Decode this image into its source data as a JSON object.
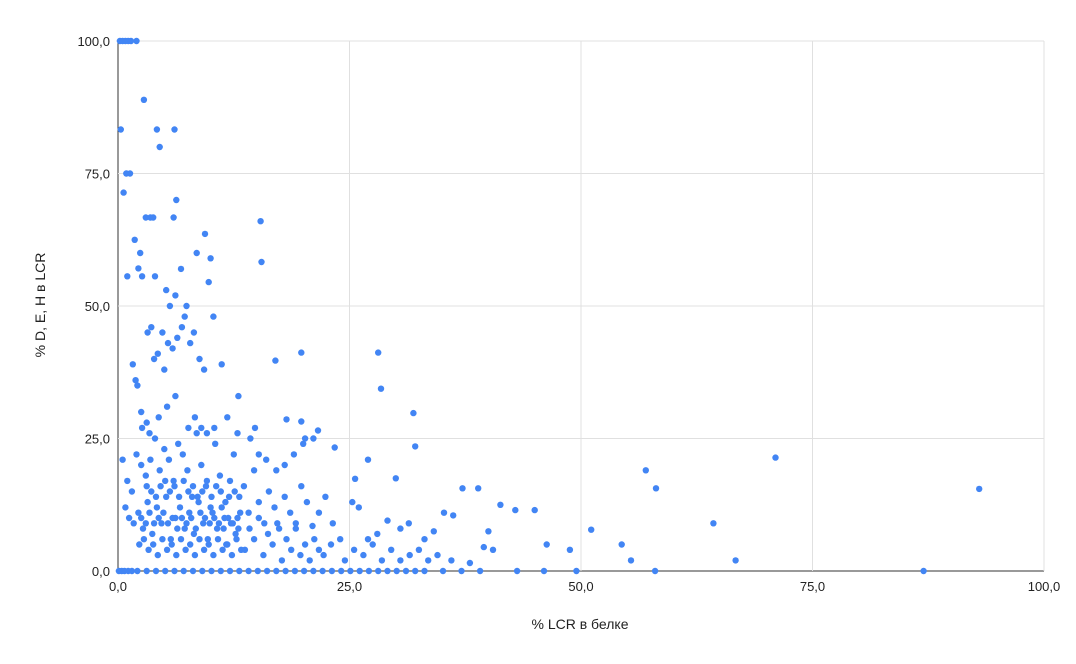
{
  "chart_data": {
    "type": "scatter",
    "title": "",
    "xlabel": "% LCR в белке",
    "ylabel": "% D, E, H в LCR",
    "xlim": [
      0,
      100
    ],
    "ylim": [
      0,
      100
    ],
    "x_ticks": [
      "0,0",
      "25,0",
      "50,0",
      "75,0",
      "100,0"
    ],
    "y_ticks": [
      "0,0",
      "25,0",
      "50,0",
      "75,0",
      "100,0"
    ],
    "grid": true,
    "legend": "none",
    "point_color": "#4285F4",
    "series": [
      {
        "points": [
          [
            0.2,
            100
          ],
          [
            0.5,
            100
          ],
          [
            0.8,
            100
          ],
          [
            1.1,
            100
          ],
          [
            1.4,
            100
          ],
          [
            2.0,
            100
          ],
          [
            0.3,
            83.3
          ],
          [
            0.6,
            71.4
          ],
          [
            0.9,
            75
          ],
          [
            1.3,
            75
          ],
          [
            1.0,
            55.6
          ],
          [
            1.8,
            62.5
          ],
          [
            2.2,
            57.1
          ],
          [
            2.6,
            55.6
          ],
          [
            2.4,
            60
          ],
          [
            2.8,
            88.9
          ],
          [
            3.0,
            66.7
          ],
          [
            3.5,
            66.7
          ],
          [
            3.8,
            66.7
          ],
          [
            4.0,
            55.6
          ],
          [
            4.2,
            83.3
          ],
          [
            4.5,
            80
          ],
          [
            6.1,
            83.3
          ],
          [
            6.3,
            70
          ],
          [
            6.0,
            66.7
          ],
          [
            5.2,
            53
          ],
          [
            5.6,
            50
          ],
          [
            6.2,
            52
          ],
          [
            6.8,
            57
          ],
          [
            7.4,
            50
          ],
          [
            8.5,
            60
          ],
          [
            9.4,
            63.6
          ],
          [
            10.0,
            59
          ],
          [
            9.8,
            54.5
          ],
          [
            10.3,
            48
          ],
          [
            15.4,
            66
          ],
          [
            15.5,
            58.3
          ],
          [
            17.0,
            39.7
          ],
          [
            19.8,
            41.2
          ],
          [
            28.1,
            41.2
          ],
          [
            28.4,
            34.4
          ],
          [
            31.9,
            29.8
          ],
          [
            32.1,
            23.5
          ],
          [
            3.2,
            45
          ],
          [
            3.6,
            46
          ],
          [
            3.9,
            40
          ],
          [
            4.3,
            41
          ],
          [
            4.8,
            45
          ],
          [
            5.0,
            38
          ],
          [
            5.4,
            43
          ],
          [
            5.9,
            42
          ],
          [
            6.4,
            44
          ],
          [
            6.9,
            46
          ],
          [
            7.2,
            48
          ],
          [
            7.8,
            43
          ],
          [
            8.2,
            45
          ],
          [
            8.8,
            40
          ],
          [
            9.3,
            38
          ],
          [
            11.2,
            39
          ],
          [
            13.0,
            33
          ],
          [
            1.6,
            39
          ],
          [
            1.9,
            36
          ],
          [
            2.1,
            35
          ],
          [
            2.5,
            30
          ],
          [
            18.2,
            28.6
          ],
          [
            19.8,
            28.2
          ],
          [
            21.6,
            26.5
          ],
          [
            20.2,
            25
          ],
          [
            21.1,
            25
          ],
          [
            23.4,
            23.3
          ],
          [
            25.6,
            17.4
          ],
          [
            27.0,
            21
          ],
          [
            30.0,
            17.5
          ],
          [
            37.2,
            15.6
          ],
          [
            38.9,
            15.6
          ],
          [
            57.0,
            19
          ],
          [
            58.1,
            15.6
          ],
          [
            71.0,
            21.4
          ],
          [
            93.0,
            15.5
          ],
          [
            64.3,
            9
          ],
          [
            66.7,
            2
          ],
          [
            55.4,
            2
          ],
          [
            51.1,
            7.8
          ],
          [
            54.4,
            5
          ],
          [
            48.8,
            4
          ],
          [
            46.3,
            5
          ],
          [
            42.9,
            11.5
          ],
          [
            45.0,
            11.5
          ],
          [
            41.3,
            12.5
          ],
          [
            40.0,
            7.5
          ],
          [
            39.5,
            4.5
          ],
          [
            36.2,
            10.5
          ],
          [
            35.2,
            11
          ],
          [
            34.1,
            7.5
          ],
          [
            33.1,
            6
          ],
          [
            31.4,
            9
          ],
          [
            30.5,
            8
          ],
          [
            29.1,
            9.5
          ],
          [
            28.0,
            7
          ],
          [
            27.0,
            6
          ],
          [
            26.0,
            12
          ],
          [
            25.3,
            13
          ],
          [
            24.0,
            6
          ],
          [
            23.2,
            9
          ],
          [
            22.4,
            14
          ],
          [
            21.7,
            11
          ],
          [
            21.0,
            8.5
          ],
          [
            20.4,
            13
          ],
          [
            19.8,
            16
          ],
          [
            19.2,
            9
          ],
          [
            18.6,
            11
          ],
          [
            18.0,
            14
          ],
          [
            17.4,
            8
          ],
          [
            16.9,
            12
          ],
          [
            16.3,
            15
          ],
          [
            15.8,
            9
          ],
          [
            15.2,
            13
          ],
          [
            14.7,
            19
          ],
          [
            14.1,
            11
          ],
          [
            13.6,
            16
          ],
          [
            13.0,
            8
          ],
          [
            12.5,
            22
          ],
          [
            12.0,
            14
          ],
          [
            11.5,
            10
          ],
          [
            11.0,
            18
          ],
          [
            10.5,
            24
          ],
          [
            10.0,
            12
          ],
          [
            9.5,
            16
          ],
          [
            9.0,
            20
          ],
          [
            8.5,
            26
          ],
          [
            8.0,
            14
          ],
          [
            7.5,
            19
          ],
          [
            7.0,
            22
          ],
          [
            6.5,
            24
          ],
          [
            6.0,
            17
          ],
          [
            5.5,
            21
          ],
          [
            5.0,
            23
          ],
          [
            4.5,
            19
          ],
          [
            4.0,
            25
          ],
          [
            3.5,
            21
          ],
          [
            3.0,
            18
          ],
          [
            2.5,
            20
          ],
          [
            2.0,
            22
          ],
          [
            1.5,
            15
          ],
          [
            1.0,
            17
          ],
          [
            0.5,
            21
          ],
          [
            0.8,
            12
          ],
          [
            1.2,
            10
          ],
          [
            1.7,
            9
          ],
          [
            2.2,
            11
          ],
          [
            2.7,
            8
          ],
          [
            3.2,
            13
          ],
          [
            3.7,
            7
          ],
          [
            4.2,
            12
          ],
          [
            4.7,
            9
          ],
          [
            5.2,
            14
          ],
          [
            5.7,
            6
          ],
          [
            6.2,
            10
          ],
          [
            6.7,
            12
          ],
          [
            7.2,
            8
          ],
          [
            7.7,
            11
          ],
          [
            8.2,
            7
          ],
          [
            8.7,
            13
          ],
          [
            9.2,
            9
          ],
          [
            9.7,
            6
          ],
          [
            10.2,
            11
          ],
          [
            10.7,
            8
          ],
          [
            11.2,
            12
          ],
          [
            11.7,
            5
          ],
          [
            12.2,
            9
          ],
          [
            12.7,
            7
          ],
          [
            13.2,
            11
          ],
          [
            13.7,
            4
          ],
          [
            14.2,
            8
          ],
          [
            14.7,
            6
          ],
          [
            15.2,
            10
          ],
          [
            15.7,
            3
          ],
          [
            16.2,
            7
          ],
          [
            16.7,
            5
          ],
          [
            17.2,
            9
          ],
          [
            17.7,
            2
          ],
          [
            18.2,
            6
          ],
          [
            18.7,
            4
          ],
          [
            19.2,
            8
          ],
          [
            19.7,
            3
          ],
          [
            20.2,
            5
          ],
          [
            20.7,
            2
          ],
          [
            21.2,
            6
          ],
          [
            21.7,
            4
          ],
          [
            22.2,
            3
          ],
          [
            23.0,
            5
          ],
          [
            24.5,
            2
          ],
          [
            25.5,
            4
          ],
          [
            26.5,
            3
          ],
          [
            27.5,
            5
          ],
          [
            28.5,
            2
          ],
          [
            29.5,
            4
          ],
          [
            30.5,
            2
          ],
          [
            31.5,
            3
          ],
          [
            32.5,
            4
          ],
          [
            33.5,
            2
          ],
          [
            34.5,
            3
          ],
          [
            36.0,
            2
          ],
          [
            38.0,
            1.5
          ],
          [
            40.5,
            4
          ],
          [
            3.1,
            16
          ],
          [
            3.6,
            15
          ],
          [
            4.1,
            14
          ],
          [
            4.6,
            16
          ],
          [
            5.1,
            17
          ],
          [
            5.6,
            15
          ],
          [
            6.1,
            16
          ],
          [
            6.6,
            14
          ],
          [
            7.1,
            17
          ],
          [
            7.6,
            15
          ],
          [
            8.1,
            16
          ],
          [
            8.6,
            14
          ],
          [
            9.1,
            15
          ],
          [
            9.6,
            17
          ],
          [
            10.1,
            14
          ],
          [
            10.6,
            16
          ],
          [
            11.1,
            15
          ],
          [
            11.6,
            13
          ],
          [
            12.1,
            17
          ],
          [
            12.6,
            15
          ],
          [
            13.1,
            14
          ],
          [
            2.3,
            5
          ],
          [
            2.8,
            6
          ],
          [
            3.3,
            4
          ],
          [
            3.8,
            5
          ],
          [
            4.3,
            3
          ],
          [
            4.8,
            6
          ],
          [
            5.3,
            4
          ],
          [
            5.8,
            5
          ],
          [
            6.3,
            3
          ],
          [
            6.8,
            6
          ],
          [
            7.3,
            4
          ],
          [
            7.8,
            5
          ],
          [
            8.3,
            3
          ],
          [
            8.8,
            6
          ],
          [
            9.3,
            4
          ],
          [
            9.8,
            5
          ],
          [
            10.3,
            3
          ],
          [
            10.8,
            6
          ],
          [
            11.3,
            4
          ],
          [
            11.8,
            5
          ],
          [
            12.3,
            3
          ],
          [
            12.8,
            6
          ],
          [
            13.3,
            4
          ],
          [
            1.1,
            0
          ],
          [
            2.1,
            0
          ],
          [
            3.1,
            0
          ],
          [
            4.1,
            0
          ],
          [
            5.1,
            0
          ],
          [
            6.1,
            0
          ],
          [
            7.1,
            0
          ],
          [
            8.1,
            0
          ],
          [
            9.1,
            0
          ],
          [
            10.1,
            0
          ],
          [
            11.1,
            0
          ],
          [
            12.1,
            0
          ],
          [
            13.1,
            0
          ],
          [
            14.1,
            0
          ],
          [
            15.1,
            0
          ],
          [
            16.1,
            0
          ],
          [
            17.1,
            0
          ],
          [
            18.1,
            0
          ],
          [
            19.1,
            0
          ],
          [
            20.1,
            0
          ],
          [
            21.1,
            0
          ],
          [
            22.1,
            0
          ],
          [
            23.1,
            0
          ],
          [
            24.1,
            0
          ],
          [
            25.1,
            0
          ],
          [
            26.1,
            0
          ],
          [
            27.1,
            0
          ],
          [
            28.1,
            0
          ],
          [
            29.1,
            0
          ],
          [
            30.1,
            0
          ],
          [
            31.1,
            0
          ],
          [
            32.1,
            0
          ],
          [
            33.1,
            0
          ],
          [
            35.1,
            0
          ],
          [
            37.1,
            0
          ],
          [
            39.1,
            0
          ],
          [
            43.1,
            0
          ],
          [
            46.0,
            0
          ],
          [
            49.5,
            0
          ],
          [
            58.0,
            0
          ],
          [
            87.0,
            0
          ],
          [
            0.1,
            0
          ],
          [
            0.4,
            0
          ],
          [
            0.7,
            0
          ],
          [
            1.5,
            0
          ],
          [
            2.5,
            10
          ],
          [
            3.0,
            9
          ],
          [
            3.4,
            11
          ],
          [
            3.9,
            9
          ],
          [
            4.4,
            10
          ],
          [
            4.9,
            11
          ],
          [
            5.4,
            9
          ],
          [
            5.9,
            10
          ],
          [
            6.4,
            8
          ],
          [
            6.9,
            10
          ],
          [
            7.4,
            9
          ],
          [
            7.9,
            10
          ],
          [
            8.4,
            8
          ],
          [
            8.9,
            11
          ],
          [
            9.4,
            10
          ],
          [
            9.9,
            9
          ],
          [
            10.4,
            10
          ],
          [
            10.9,
            9
          ],
          [
            11.4,
            8
          ],
          [
            11.9,
            10
          ],
          [
            12.4,
            9
          ],
          [
            12.9,
            10
          ],
          [
            2.6,
            27
          ],
          [
            3.1,
            28
          ],
          [
            3.4,
            26
          ],
          [
            4.4,
            29
          ],
          [
            5.3,
            31
          ],
          [
            6.2,
            33
          ],
          [
            7.6,
            27
          ],
          [
            8.3,
            29
          ],
          [
            9.0,
            27
          ],
          [
            9.6,
            26
          ],
          [
            10.4,
            27
          ],
          [
            11.8,
            29
          ],
          [
            12.9,
            26
          ],
          [
            14.3,
            25
          ],
          [
            14.8,
            27
          ],
          [
            15.2,
            22
          ],
          [
            16.0,
            21
          ],
          [
            17.1,
            19
          ],
          [
            18.0,
            20
          ],
          [
            19.0,
            22
          ],
          [
            20.0,
            24
          ]
        ]
      }
    ]
  }
}
